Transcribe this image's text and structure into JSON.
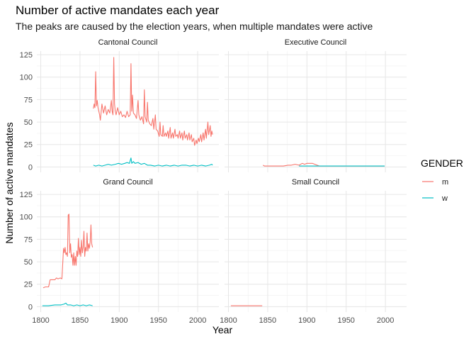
{
  "chart_data": {
    "type": "line",
    "title": "Number of active mandates each year",
    "subtitle": "The peaks are caused by the election years, when multiple mandates were active",
    "xlabel": "Year",
    "ylabel": "Number of active mandates",
    "xlim": [
      1795,
      2027
    ],
    "ylim": [
      -6,
      129
    ],
    "x_ticks": [
      1800,
      1850,
      1900,
      1950,
      2000
    ],
    "y_ticks": [
      0,
      25,
      50,
      75,
      100,
      125
    ],
    "legend": {
      "title": "GENDER",
      "placement": "right",
      "items": [
        {
          "label": "m",
          "color": "#F8766D"
        },
        {
          "label": "w",
          "color": "#00BFC4"
        }
      ]
    },
    "panels": [
      {
        "name": "Cantonal Council",
        "series": [
          {
            "gender": "m",
            "color": "#F8766D",
            "points": [
              [
                1867,
                65
              ],
              [
                1868,
                70
              ],
              [
                1869,
                66
              ],
              [
                1870,
                106
              ],
              [
                1871,
                68
              ],
              [
                1872,
                74
              ],
              [
                1873,
                66
              ],
              [
                1875,
                58
              ],
              [
                1876,
                52
              ],
              [
                1878,
                70
              ],
              [
                1880,
                60
              ],
              [
                1882,
                68
              ],
              [
                1884,
                58
              ],
              [
                1886,
                64
              ],
              [
                1888,
                60
              ],
              [
                1890,
                74
              ],
              [
                1891,
                62
              ],
              [
                1892,
                58
              ],
              [
                1893,
                122
              ],
              [
                1894,
                70
              ],
              [
                1895,
                62
              ],
              [
                1896,
                58
              ],
              [
                1898,
                66
              ],
              [
                1900,
                58
              ],
              [
                1902,
                62
              ],
              [
                1904,
                56
              ],
              [
                1906,
                58
              ],
              [
                1908,
                55
              ],
              [
                1910,
                62
              ],
              [
                1912,
                56
              ],
              [
                1914,
                58
              ],
              [
                1915,
                115
              ],
              [
                1916,
                62
              ],
              [
                1917,
                80
              ],
              [
                1918,
                60
              ],
              [
                1920,
                58
              ],
              [
                1922,
                54
              ],
              [
                1924,
                74
              ],
              [
                1925,
                58
              ],
              [
                1927,
                52
              ],
              [
                1929,
                56
              ],
              [
                1931,
                48
              ],
              [
                1932,
                86
              ],
              [
                1933,
                56
              ],
              [
                1935,
                50
              ],
              [
                1936,
                72
              ],
              [
                1937,
                52
              ],
              [
                1939,
                48
              ],
              [
                1941,
                46
              ],
              [
                1943,
                54
              ],
              [
                1944,
                42
              ],
              [
                1946,
                58
              ],
              [
                1947,
                42
              ],
              [
                1949,
                40
              ],
              [
                1951,
                34
              ],
              [
                1952,
                50
              ],
              [
                1953,
                36
              ],
              [
                1955,
                34
              ],
              [
                1956,
                46
              ],
              [
                1957,
                34
              ],
              [
                1959,
                38
              ],
              [
                1960,
                34
              ],
              [
                1962,
                40
              ],
              [
                1963,
                32
              ],
              [
                1965,
                44
              ],
              [
                1966,
                32
              ],
              [
                1968,
                38
              ],
              [
                1969,
                32
              ],
              [
                1971,
                42
              ],
              [
                1972,
                34
              ],
              [
                1974,
                36
              ],
              [
                1975,
                32
              ],
              [
                1977,
                40
              ],
              [
                1978,
                32
              ],
              [
                1980,
                38
              ],
              [
                1981,
                30
              ],
              [
                1983,
                40
              ],
              [
                1984,
                32
              ],
              [
                1986,
                36
              ],
              [
                1987,
                30
              ],
              [
                1989,
                38
              ],
              [
                1990,
                30
              ],
              [
                1992,
                36
              ],
              [
                1993,
                28
              ],
              [
                1995,
                32
              ],
              [
                1996,
                24
              ],
              [
                1998,
                30
              ],
              [
                1999,
                26
              ],
              [
                2001,
                32
              ],
              [
                2002,
                28
              ],
              [
                2004,
                36
              ],
              [
                2005,
                28
              ],
              [
                2007,
                38
              ],
              [
                2008,
                30
              ],
              [
                2010,
                42
              ],
              [
                2011,
                32
              ],
              [
                2013,
                50
              ],
              [
                2014,
                36
              ],
              [
                2016,
                46
              ],
              [
                2017,
                34
              ],
              [
                2018,
                40
              ],
              [
                2019,
                36
              ]
            ]
          },
          {
            "gender": "w",
            "color": "#00BFC4",
            "points": [
              [
                1867,
                2
              ],
              [
                1870,
                1
              ],
              [
                1874,
                2
              ],
              [
                1878,
                1
              ],
              [
                1882,
                2
              ],
              [
                1886,
                3
              ],
              [
                1890,
                2
              ],
              [
                1895,
                3
              ],
              [
                1899,
                4
              ],
              [
                1903,
                3
              ],
              [
                1907,
                4
              ],
              [
                1910,
                5
              ],
              [
                1913,
                4
              ],
              [
                1915,
                10
              ],
              [
                1916,
                4
              ],
              [
                1918,
                6
              ],
              [
                1920,
                4
              ],
              [
                1924,
                5
              ],
              [
                1928,
                3
              ],
              [
                1932,
                4
              ],
              [
                1936,
                2
              ],
              [
                1940,
                2
              ],
              [
                1945,
                1
              ],
              [
                1950,
                2
              ],
              [
                1955,
                1
              ],
              [
                1960,
                2
              ],
              [
                1965,
                1
              ],
              [
                1970,
                2
              ],
              [
                1975,
                1
              ],
              [
                1980,
                2
              ],
              [
                1985,
                2
              ],
              [
                1990,
                1
              ],
              [
                1995,
                2
              ],
              [
                2000,
                1
              ],
              [
                2005,
                2
              ],
              [
                2010,
                1
              ],
              [
                2015,
                2
              ],
              [
                2018,
                3
              ],
              [
                2019,
                2
              ]
            ]
          }
        ]
      },
      {
        "name": "Executive Council",
        "series": [
          {
            "gender": "m",
            "color": "#F8766D",
            "points": [
              [
                1844,
                2
              ],
              [
                1846,
                1
              ],
              [
                1850,
                1
              ],
              [
                1860,
                1
              ],
              [
                1870,
                1
              ],
              [
                1876,
                2
              ],
              [
                1880,
                2
              ],
              [
                1885,
                3
              ],
              [
                1890,
                2
              ],
              [
                1894,
                4
              ],
              [
                1897,
                3
              ],
              [
                1900,
                4
              ],
              [
                1904,
                4
              ],
              [
                1907,
                4
              ],
              [
                1910,
                3
              ],
              [
                1913,
                2
              ],
              [
                1916,
                1
              ],
              [
                1920,
                1
              ],
              [
                1940,
                1
              ],
              [
                1960,
                1
              ],
              [
                1980,
                1
              ],
              [
                1999,
                1
              ]
            ]
          },
          {
            "gender": "w",
            "color": "#00BFC4",
            "points": [
              [
                1890,
                1
              ],
              [
                1900,
                1
              ],
              [
                1910,
                1
              ],
              [
                1930,
                1
              ],
              [
                1950,
                1
              ],
              [
                1970,
                1
              ],
              [
                1990,
                1
              ],
              [
                1999,
                1
              ]
            ]
          }
        ]
      },
      {
        "name": "Grand Council",
        "series": [
          {
            "gender": "m",
            "color": "#F8766D",
            "points": [
              [
                1803,
                21
              ],
              [
                1806,
                22
              ],
              [
                1810,
                22
              ],
              [
                1812,
                30
              ],
              [
                1815,
                30
              ],
              [
                1818,
                30
              ],
              [
                1820,
                32
              ],
              [
                1822,
                31
              ],
              [
                1825,
                32
              ],
              [
                1827,
                31
              ],
              [
                1829,
                65
              ],
              [
                1830,
                60
              ],
              [
                1831,
                66
              ],
              [
                1832,
                58
              ],
              [
                1833,
                60
              ],
              [
                1834,
                56
              ],
              [
                1835,
                102
              ],
              [
                1836,
                103
              ],
              [
                1837,
                60
              ],
              [
                1838,
                70
              ],
              [
                1839,
                55
              ],
              [
                1840,
                58
              ],
              [
                1841,
                46
              ],
              [
                1842,
                60
              ],
              [
                1843,
                46
              ],
              [
                1844,
                56
              ],
              [
                1845,
                46
              ],
              [
                1846,
                62
              ],
              [
                1847,
                56
              ],
              [
                1848,
                76
              ],
              [
                1849,
                58
              ],
              [
                1850,
                66
              ],
              [
                1851,
                56
              ],
              [
                1852,
                74
              ],
              [
                1853,
                60
              ],
              [
                1854,
                66
              ],
              [
                1855,
                84
              ],
              [
                1856,
                56
              ],
              [
                1857,
                66
              ],
              [
                1858,
                62
              ],
              [
                1859,
                82
              ],
              [
                1860,
                62
              ],
              [
                1861,
                70
              ],
              [
                1862,
                65
              ],
              [
                1863,
                72
              ],
              [
                1864,
                91
              ],
              [
                1865,
                70
              ],
              [
                1866,
                66
              ]
            ]
          },
          {
            "gender": "w",
            "color": "#00BFC4",
            "points": [
              [
                1802,
                1
              ],
              [
                1810,
                1
              ],
              [
                1818,
                2
              ],
              [
                1826,
                2
              ],
              [
                1830,
                3
              ],
              [
                1832,
                4
              ],
              [
                1834,
                2
              ],
              [
                1838,
                2
              ],
              [
                1842,
                1
              ],
              [
                1846,
                2
              ],
              [
                1850,
                1
              ],
              [
                1854,
                2
              ],
              [
                1858,
                1
              ],
              [
                1862,
                2
              ],
              [
                1866,
                1
              ]
            ]
          }
        ]
      },
      {
        "name": "Small Council",
        "series": [
          {
            "gender": "m",
            "color": "#F8766D",
            "points": [
              [
                1803,
                1
              ],
              [
                1843,
                1
              ]
            ]
          }
        ]
      }
    ]
  }
}
